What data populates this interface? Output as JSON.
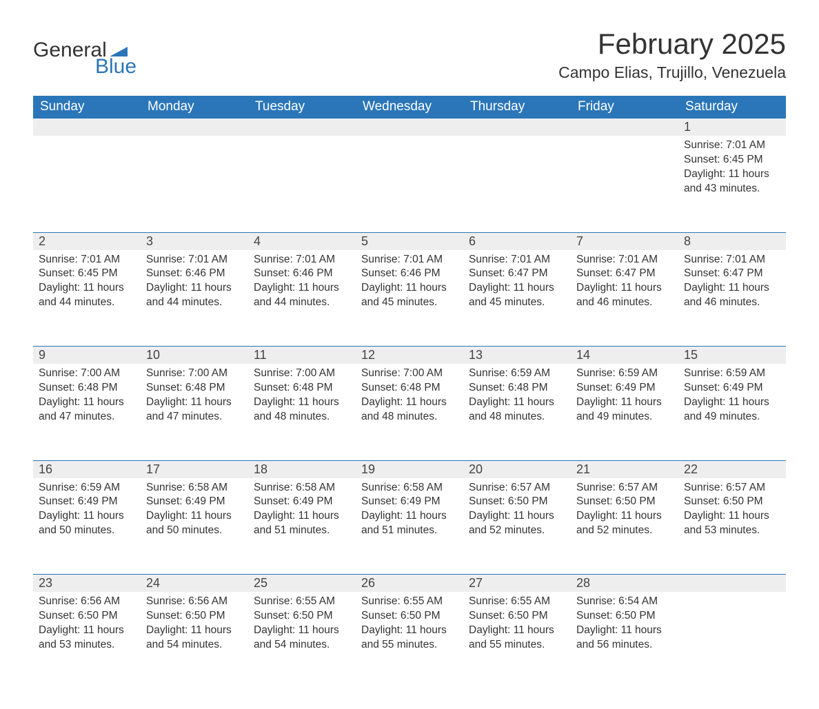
{
  "logo": {
    "word1": "General",
    "word2": "Blue",
    "brand_color": "#2a76b9"
  },
  "title": "February 2025",
  "location": "Campo Elias, Trujillo, Venezuela",
  "colors": {
    "header_bg": "#2a76b9",
    "header_fg": "#ffffff",
    "daynum_bg": "#eeeeee",
    "text": "#333333",
    "row_border": "#2a76b9"
  },
  "typography": {
    "title_fontsize": 42,
    "location_fontsize": 23,
    "weekday_fontsize": 19,
    "daynum_fontsize": 18,
    "body_fontsize": 15.5,
    "font_family": "Segoe UI"
  },
  "weekdays": [
    "Sunday",
    "Monday",
    "Tuesday",
    "Wednesday",
    "Thursday",
    "Friday",
    "Saturday"
  ],
  "weeks": [
    [
      null,
      null,
      null,
      null,
      null,
      null,
      {
        "day": "1",
        "sunrise": "Sunrise: 7:01 AM",
        "sunset": "Sunset: 6:45 PM",
        "daylight": "Daylight: 11 hours and 43 minutes."
      }
    ],
    [
      {
        "day": "2",
        "sunrise": "Sunrise: 7:01 AM",
        "sunset": "Sunset: 6:45 PM",
        "daylight": "Daylight: 11 hours and 44 minutes."
      },
      {
        "day": "3",
        "sunrise": "Sunrise: 7:01 AM",
        "sunset": "Sunset: 6:46 PM",
        "daylight": "Daylight: 11 hours and 44 minutes."
      },
      {
        "day": "4",
        "sunrise": "Sunrise: 7:01 AM",
        "sunset": "Sunset: 6:46 PM",
        "daylight": "Daylight: 11 hours and 44 minutes."
      },
      {
        "day": "5",
        "sunrise": "Sunrise: 7:01 AM",
        "sunset": "Sunset: 6:46 PM",
        "daylight": "Daylight: 11 hours and 45 minutes."
      },
      {
        "day": "6",
        "sunrise": "Sunrise: 7:01 AM",
        "sunset": "Sunset: 6:47 PM",
        "daylight": "Daylight: 11 hours and 45 minutes."
      },
      {
        "day": "7",
        "sunrise": "Sunrise: 7:01 AM",
        "sunset": "Sunset: 6:47 PM",
        "daylight": "Daylight: 11 hours and 46 minutes."
      },
      {
        "day": "8",
        "sunrise": "Sunrise: 7:01 AM",
        "sunset": "Sunset: 6:47 PM",
        "daylight": "Daylight: 11 hours and 46 minutes."
      }
    ],
    [
      {
        "day": "9",
        "sunrise": "Sunrise: 7:00 AM",
        "sunset": "Sunset: 6:48 PM",
        "daylight": "Daylight: 11 hours and 47 minutes."
      },
      {
        "day": "10",
        "sunrise": "Sunrise: 7:00 AM",
        "sunset": "Sunset: 6:48 PM",
        "daylight": "Daylight: 11 hours and 47 minutes."
      },
      {
        "day": "11",
        "sunrise": "Sunrise: 7:00 AM",
        "sunset": "Sunset: 6:48 PM",
        "daylight": "Daylight: 11 hours and 48 minutes."
      },
      {
        "day": "12",
        "sunrise": "Sunrise: 7:00 AM",
        "sunset": "Sunset: 6:48 PM",
        "daylight": "Daylight: 11 hours and 48 minutes."
      },
      {
        "day": "13",
        "sunrise": "Sunrise: 6:59 AM",
        "sunset": "Sunset: 6:48 PM",
        "daylight": "Daylight: 11 hours and 48 minutes."
      },
      {
        "day": "14",
        "sunrise": "Sunrise: 6:59 AM",
        "sunset": "Sunset: 6:49 PM",
        "daylight": "Daylight: 11 hours and 49 minutes."
      },
      {
        "day": "15",
        "sunrise": "Sunrise: 6:59 AM",
        "sunset": "Sunset: 6:49 PM",
        "daylight": "Daylight: 11 hours and 49 minutes."
      }
    ],
    [
      {
        "day": "16",
        "sunrise": "Sunrise: 6:59 AM",
        "sunset": "Sunset: 6:49 PM",
        "daylight": "Daylight: 11 hours and 50 minutes."
      },
      {
        "day": "17",
        "sunrise": "Sunrise: 6:58 AM",
        "sunset": "Sunset: 6:49 PM",
        "daylight": "Daylight: 11 hours and 50 minutes."
      },
      {
        "day": "18",
        "sunrise": "Sunrise: 6:58 AM",
        "sunset": "Sunset: 6:49 PM",
        "daylight": "Daylight: 11 hours and 51 minutes."
      },
      {
        "day": "19",
        "sunrise": "Sunrise: 6:58 AM",
        "sunset": "Sunset: 6:49 PM",
        "daylight": "Daylight: 11 hours and 51 minutes."
      },
      {
        "day": "20",
        "sunrise": "Sunrise: 6:57 AM",
        "sunset": "Sunset: 6:50 PM",
        "daylight": "Daylight: 11 hours and 52 minutes."
      },
      {
        "day": "21",
        "sunrise": "Sunrise: 6:57 AM",
        "sunset": "Sunset: 6:50 PM",
        "daylight": "Daylight: 11 hours and 52 minutes."
      },
      {
        "day": "22",
        "sunrise": "Sunrise: 6:57 AM",
        "sunset": "Sunset: 6:50 PM",
        "daylight": "Daylight: 11 hours and 53 minutes."
      }
    ],
    [
      {
        "day": "23",
        "sunrise": "Sunrise: 6:56 AM",
        "sunset": "Sunset: 6:50 PM",
        "daylight": "Daylight: 11 hours and 53 minutes."
      },
      {
        "day": "24",
        "sunrise": "Sunrise: 6:56 AM",
        "sunset": "Sunset: 6:50 PM",
        "daylight": "Daylight: 11 hours and 54 minutes."
      },
      {
        "day": "25",
        "sunrise": "Sunrise: 6:55 AM",
        "sunset": "Sunset: 6:50 PM",
        "daylight": "Daylight: 11 hours and 54 minutes."
      },
      {
        "day": "26",
        "sunrise": "Sunrise: 6:55 AM",
        "sunset": "Sunset: 6:50 PM",
        "daylight": "Daylight: 11 hours and 55 minutes."
      },
      {
        "day": "27",
        "sunrise": "Sunrise: 6:55 AM",
        "sunset": "Sunset: 6:50 PM",
        "daylight": "Daylight: 11 hours and 55 minutes."
      },
      {
        "day": "28",
        "sunrise": "Sunrise: 6:54 AM",
        "sunset": "Sunset: 6:50 PM",
        "daylight": "Daylight: 11 hours and 56 minutes."
      },
      null
    ]
  ]
}
